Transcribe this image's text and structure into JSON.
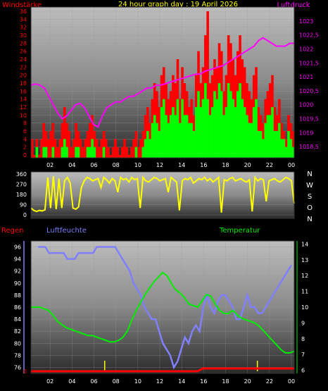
{
  "chart_data": [
    {
      "type": "bar",
      "title": "24 hour graph day : 19 April 2026",
      "left_label": "Windstärke",
      "right_label": "Luftdruck",
      "x_ticks": [
        "02",
        "04",
        "06",
        "08",
        "10",
        "12",
        "14",
        "16",
        "18",
        "20",
        "22",
        "00"
      ],
      "y_left_ticks": [
        "0",
        "2",
        "4",
        "6",
        "8",
        "10",
        "12",
        "14",
        "16",
        "18",
        "20",
        "22",
        "24",
        "26",
        "28",
        "30",
        "32",
        "34",
        "36"
      ],
      "y_left_range": [
        0,
        36
      ],
      "y_right_ticks": [
        "1018,5",
        "1019",
        "1019,5",
        "1020",
        "1020,5",
        "1021",
        "1021,5",
        "1022",
        "1022,5",
        "1023"
      ],
      "y_right_range": [
        1018.1,
        1023.5
      ],
      "colors": {
        "gust": "#ff0000",
        "wind": "#00ff00",
        "pressure": "#ff00ff",
        "left_axis": "#ff0000",
        "right_axis": "#ff00ff",
        "title": "#ffff00"
      },
      "gust": [
        4,
        0,
        4,
        0,
        4,
        8,
        6,
        4,
        6,
        8,
        4,
        2,
        4,
        8,
        12,
        8,
        6,
        2,
        4,
        8,
        6,
        4,
        2,
        4,
        6,
        8,
        10,
        6,
        4,
        2,
        4,
        6,
        4,
        2,
        0,
        2,
        4,
        2,
        0,
        2,
        4,
        2,
        0,
        2,
        4,
        6,
        2,
        4,
        6,
        10,
        12,
        8,
        14,
        18,
        16,
        12,
        20,
        22,
        18,
        14,
        16,
        20,
        18,
        24,
        14,
        22,
        18,
        16,
        12,
        14,
        10,
        20,
        26,
        18,
        22,
        30,
        36,
        18,
        20,
        24,
        22,
        28,
        26,
        16,
        20,
        30,
        28,
        24,
        20,
        26,
        30,
        24,
        22,
        18,
        16,
        14,
        20,
        22,
        12,
        10,
        8,
        14,
        16,
        18,
        20,
        12,
        10,
        14,
        8,
        6,
        4,
        10,
        8,
        6
      ],
      "wind": [
        0,
        0,
        2,
        0,
        0,
        2,
        2,
        0,
        0,
        2,
        0,
        0,
        0,
        2,
        4,
        2,
        0,
        0,
        0,
        2,
        2,
        0,
        0,
        0,
        2,
        2,
        4,
        2,
        0,
        0,
        0,
        2,
        0,
        0,
        0,
        0,
        0,
        0,
        0,
        0,
        0,
        0,
        0,
        0,
        0,
        2,
        0,
        0,
        2,
        4,
        6,
        4,
        8,
        10,
        8,
        6,
        12,
        14,
        10,
        8,
        10,
        12,
        10,
        14,
        8,
        14,
        10,
        10,
        8,
        8,
        6,
        12,
        16,
        12,
        14,
        18,
        14,
        10,
        12,
        16,
        14,
        18,
        16,
        10,
        12,
        18,
        16,
        14,
        12,
        16,
        18,
        14,
        12,
        10,
        8,
        8,
        12,
        14,
        6,
        6,
        4,
        8,
        10,
        10,
        12,
        6,
        6,
        8,
        4,
        4,
        2,
        6,
        4,
        2
      ],
      "pressure": [
        1020.7,
        1020.75,
        1020.7,
        1020.6,
        1020.3,
        1020.0,
        1019.7,
        1019.5,
        1019.6,
        1019.8,
        1020.0,
        1020.05,
        1019.9,
        1019.6,
        1019.3,
        1019.2,
        1019.6,
        1019.9,
        1020.0,
        1020.1,
        1020.1,
        1020.2,
        1020.3,
        1020.3,
        1020.4,
        1020.5,
        1020.6,
        1020.6,
        1020.7,
        1020.7,
        1020.75,
        1020.8,
        1020.85,
        1020.9,
        1020.95,
        1021.0,
        1021.05,
        1021.1,
        1021.1,
        1021.2,
        1021.25,
        1021.3,
        1021.35,
        1021.4,
        1021.5,
        1021.6,
        1021.7,
        1021.8,
        1021.9,
        1022.0,
        1022.1,
        1022.3,
        1022.4,
        1022.3,
        1022.2,
        1022.1,
        1022.1,
        1022.1,
        1022.2,
        1022.2
      ]
    },
    {
      "type": "line",
      "right_labels": [
        "N",
        "W",
        "S",
        "O",
        "N"
      ],
      "y_ticks": [
        "0",
        "90",
        "180",
        "270",
        "360"
      ],
      "y_range": [
        0,
        360
      ],
      "color": "#ffff00",
      "direction": [
        60,
        40,
        30,
        40,
        35,
        45,
        330,
        60,
        340,
        50,
        320,
        60,
        300,
        330,
        280,
        60,
        50,
        70,
        240,
        300,
        330,
        320,
        300,
        310,
        320,
        240,
        330,
        310,
        280,
        320,
        300,
        200,
        330,
        310,
        320,
        290,
        330,
        310,
        320,
        60,
        330,
        300,
        290,
        310,
        330,
        320,
        300,
        310,
        320,
        200,
        330,
        310,
        290,
        40,
        300,
        320,
        310,
        330,
        280,
        300,
        320,
        310,
        330,
        300,
        320,
        290,
        310,
        330,
        20,
        310,
        300,
        320,
        330,
        300,
        310,
        320,
        300,
        290,
        310,
        30,
        330,
        300,
        320,
        310,
        120,
        300,
        310,
        320,
        300,
        290,
        310,
        330,
        320,
        300,
        100
      ]
    },
    {
      "type": "line",
      "left_label": "Regen",
      "mid_label": "Luftfeuchte",
      "right_label": "Temperatur",
      "x_ticks": [
        "02",
        "04",
        "06",
        "08",
        "10",
        "12",
        "14",
        "16",
        "18",
        "20",
        "22",
        "00"
      ],
      "y_left_ticks": [
        "76",
        "78",
        "80",
        "82",
        "84",
        "86",
        "88",
        "90",
        "92",
        "94",
        "96"
      ],
      "y_left_range": [
        75,
        97
      ],
      "y_right_ticks": [
        "6",
        "7",
        "8",
        "9",
        "10",
        "11",
        "12",
        "13",
        "14"
      ],
      "y_right_range": [
        5.8,
        14.2
      ],
      "rain_label": "0",
      "colors": {
        "humidity": "#8080ff",
        "temperature": "#00ee00",
        "rain": "#ff0000",
        "rain_marks": "#ffff00",
        "left_axis": "#ff0000",
        "mid_axis": "#8080ff",
        "right_axis": "#00ee00"
      },
      "humidity": [
        96,
        96,
        96,
        95,
        95,
        95,
        95,
        95,
        94,
        94,
        94,
        95,
        95,
        95,
        95,
        95,
        96,
        96,
        96,
        96,
        96,
        96,
        95,
        94,
        93,
        92,
        90,
        89,
        88,
        86,
        85,
        84,
        84,
        82,
        80,
        79,
        78,
        76,
        77,
        79,
        81,
        80,
        82,
        83,
        82,
        86,
        88,
        86,
        85,
        87,
        88,
        88,
        87,
        86,
        84,
        84,
        86,
        88,
        86,
        86,
        85,
        85,
        86,
        87,
        88,
        89,
        90,
        91,
        92,
        93
      ],
      "temperature": [
        10.0,
        10.0,
        10.0,
        9.9,
        9.8,
        9.5,
        9.1,
        8.9,
        8.7,
        8.6,
        8.5,
        8.4,
        8.3,
        8.2,
        8.2,
        8.1,
        8.0,
        7.9,
        7.8,
        7.8,
        7.9,
        8.1,
        8.5,
        9.2,
        9.8,
        10.3,
        10.8,
        11.2,
        11.6,
        11.9,
        12.2,
        12.0,
        11.5,
        11.1,
        10.9,
        10.6,
        10.2,
        10.1,
        10.0,
        10.4,
        10.8,
        10.7,
        10.2,
        9.8,
        9.6,
        9.6,
        9.8,
        9.5,
        9.3,
        9.2,
        9.1,
        9.0,
        8.8,
        8.5,
        8.2,
        7.9,
        7.6,
        7.3,
        7.1,
        7.1,
        7.2
      ],
      "rain": [
        0,
        0,
        0,
        0,
        0,
        0,
        0,
        0,
        0,
        0,
        0,
        0,
        0,
        0,
        0,
        0,
        0,
        0,
        0,
        0,
        0,
        0,
        0,
        0,
        0,
        0,
        0,
        0,
        0,
        0,
        0,
        0,
        0.2,
        0.2,
        0.2,
        0.2,
        0.2,
        0.2,
        0.2,
        0.2,
        0.2,
        0.2,
        0.2,
        0.2,
        0.2,
        0.2,
        0.2,
        0.2,
        0.2,
        0.2
      ]
    }
  ]
}
